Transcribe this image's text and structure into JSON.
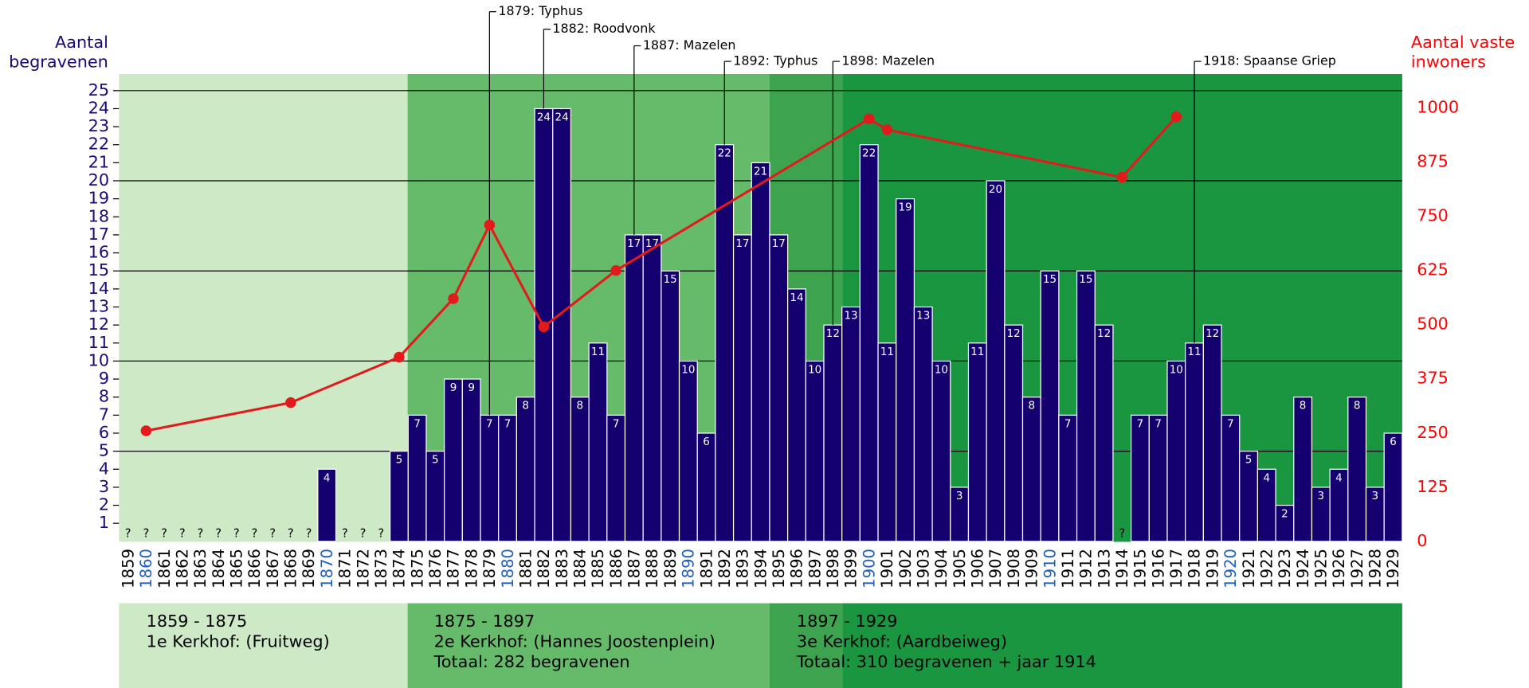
{
  "chart_data": {
    "type": "bar",
    "ylabel": [
      "Aantal",
      "begravenen"
    ],
    "y2label": [
      "Aantal vaste",
      "inwoners"
    ],
    "categories": [
      1859,
      1860,
      1861,
      1862,
      1863,
      1864,
      1865,
      1866,
      1867,
      1868,
      1869,
      1870,
      1871,
      1872,
      1873,
      1874,
      1875,
      1876,
      1877,
      1878,
      1879,
      1880,
      1881,
      1882,
      1883,
      1884,
      1885,
      1886,
      1887,
      1888,
      1889,
      1890,
      1891,
      1892,
      1893,
      1894,
      1895,
      1896,
      1897,
      1898,
      1899,
      1900,
      1901,
      1902,
      1903,
      1904,
      1905,
      1906,
      1907,
      1908,
      1909,
      1910,
      1911,
      1912,
      1913,
      1914,
      1915,
      1916,
      1917,
      1918,
      1919,
      1920,
      1921,
      1922,
      1923,
      1924,
      1925,
      1926,
      1927,
      1928,
      1929
    ],
    "highlight_color": "#1f5fbf",
    "series": [
      {
        "color": "#14006e",
        "values": [
          null,
          null,
          null,
          null,
          null,
          null,
          null,
          null,
          null,
          null,
          null,
          4,
          null,
          null,
          null,
          5,
          7,
          5,
          9,
          9,
          7,
          7,
          8,
          24,
          24,
          8,
          11,
          7,
          17,
          17,
          15,
          10,
          6,
          22,
          17,
          21,
          17,
          14,
          10,
          12,
          13,
          22,
          11,
          19,
          13,
          10,
          3,
          11,
          20,
          12,
          8,
          15,
          7,
          15,
          12,
          null,
          7,
          7,
          10,
          11,
          12,
          7,
          5,
          4,
          2,
          8,
          3,
          4,
          8,
          3,
          6
        ],
        "value_labels": [
          "?",
          "?",
          "?",
          "?",
          "?",
          "?",
          "?",
          "?",
          "?",
          "?",
          "?",
          null,
          "?",
          "?",
          "?",
          null,
          null,
          null,
          null,
          null,
          null,
          null,
          null,
          null,
          null,
          null,
          null,
          null,
          null,
          null,
          null,
          null,
          null,
          null,
          null,
          null,
          null,
          null,
          null,
          null,
          null,
          null,
          null,
          null,
          null,
          null,
          null,
          null,
          null,
          null,
          null,
          null,
          null,
          null,
          null,
          "?",
          null,
          null,
          null,
          null,
          null,
          null,
          null,
          null,
          null,
          null,
          null,
          null,
          null,
          null,
          null
        ]
      },
      {
        "type": "line",
        "axis": "y2",
        "color": "#e31a1c",
        "x": [
          1860,
          1868,
          1874,
          1877,
          1879,
          1882,
          1886,
          1900,
          1901,
          1914,
          1917
        ],
        "values": [
          255,
          320,
          425,
          560,
          730,
          495,
          625,
          975,
          950,
          840,
          980
        ]
      }
    ],
    "ylim": [
      0,
      25
    ],
    "yticks": [
      1,
      2,
      3,
      4,
      5,
      6,
      7,
      8,
      9,
      10,
      11,
      12,
      13,
      14,
      15,
      16,
      17,
      18,
      19,
      20,
      21,
      22,
      23,
      24,
      25
    ],
    "ygrid": [
      5,
      10,
      15,
      20,
      25
    ],
    "y2lim": [
      0,
      1040
    ],
    "y2ticks": [
      0,
      125,
      250,
      375,
      500,
      625,
      750,
      875,
      1000
    ],
    "annotations": [
      {
        "x": 1879,
        "label": "1879: Typhus"
      },
      {
        "x": 1882,
        "label": "1882: Roodvonk"
      },
      {
        "x": 1887,
        "label": "1887: Mazelen"
      },
      {
        "x": 1892,
        "label": "1892: Typhus"
      },
      {
        "x": 1898,
        "label": "1898: Mazelen"
      },
      {
        "x": 1918,
        "label": "1918: Spaanse Griep"
      }
    ],
    "periods": [
      {
        "range": "1859 - 1875",
        "place": "1e Kerkhof: (Fruitweg)"
      },
      {
        "range": "1875 - 1897",
        "place": "2e Kerkhof: (Hannes Joostenplein)",
        "total": "Totaal: 282 begravenen"
      },
      {
        "range": "1897 - 1929",
        "place": "3e Kerkhof: (Aardbeiweg)",
        "total": "Totaal: 310 begravenen + jaar 1914"
      }
    ]
  }
}
